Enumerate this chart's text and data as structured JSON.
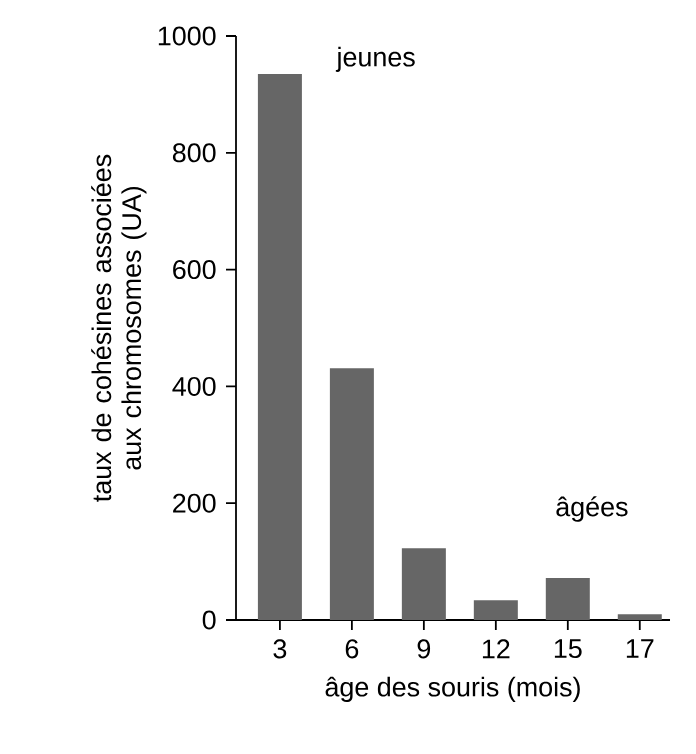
{
  "chart_data": {
    "type": "bar",
    "xlabel": "âge des souris (mois)",
    "ylabel": "taux de cohésines associées aux chromosomes (UA)",
    "categories": [
      "3",
      "6",
      "9",
      "12",
      "15",
      "17"
    ],
    "values": [
      935,
      431,
      123,
      34,
      72,
      10
    ],
    "color": "#666666",
    "ylim": [
      0,
      1000
    ],
    "yticks": [
      0,
      200,
      400,
      600,
      800,
      1000
    ],
    "annotations": [
      "jeunes",
      "âgées"
    ]
  }
}
